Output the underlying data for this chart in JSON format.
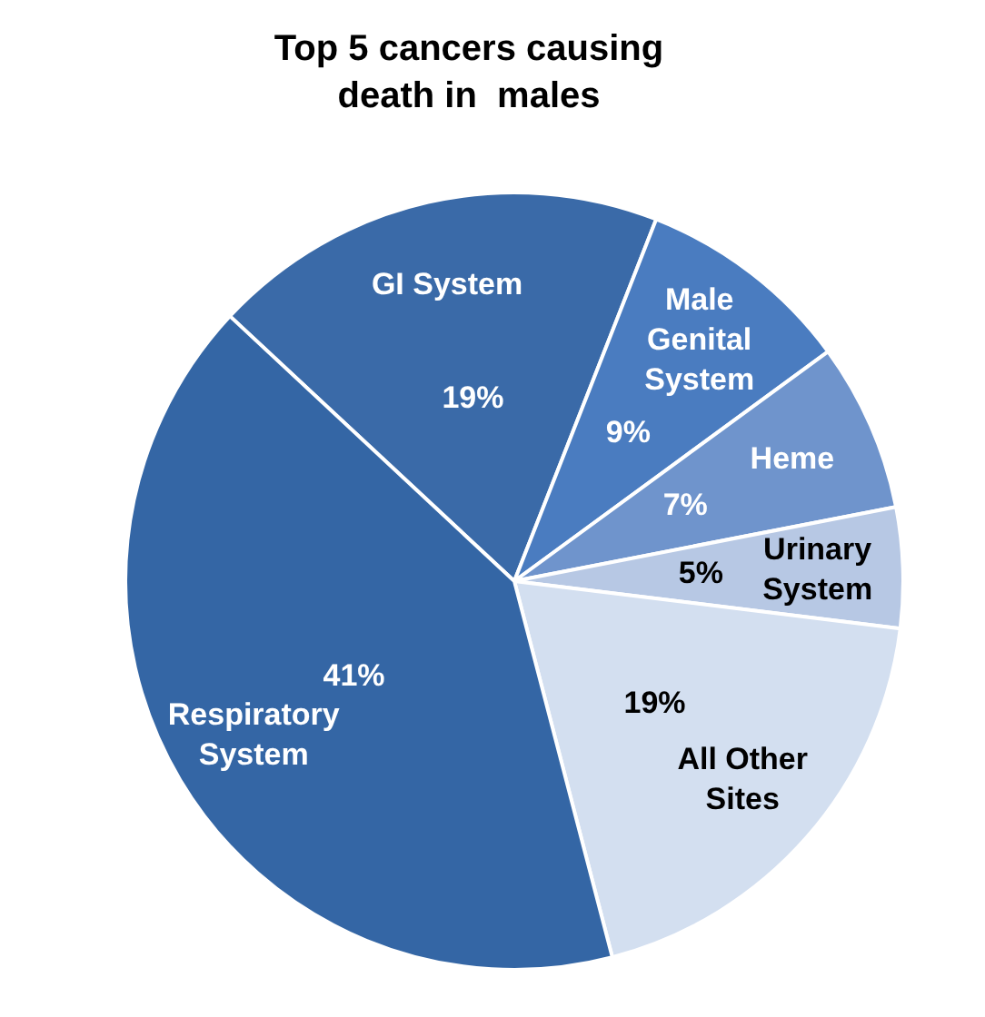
{
  "chart_data": {
    "type": "pie",
    "title": "Top 5 cancers causing death in  males",
    "categories": [
      "GI System",
      "Male Genital System",
      "Heme",
      "Urinary System",
      "All Other Sites",
      "Respiratory System"
    ],
    "values": [
      19,
      9,
      7,
      5,
      19,
      41
    ],
    "colors": [
      "#3a6aa8",
      "#4a7cc0",
      "#6f94cc",
      "#b7c8e4",
      "#d3dff0",
      "#3466a5"
    ],
    "value_labels": [
      "19%",
      "9%",
      "7%",
      "5%",
      "19%",
      "41%"
    ],
    "legend": false
  }
}
